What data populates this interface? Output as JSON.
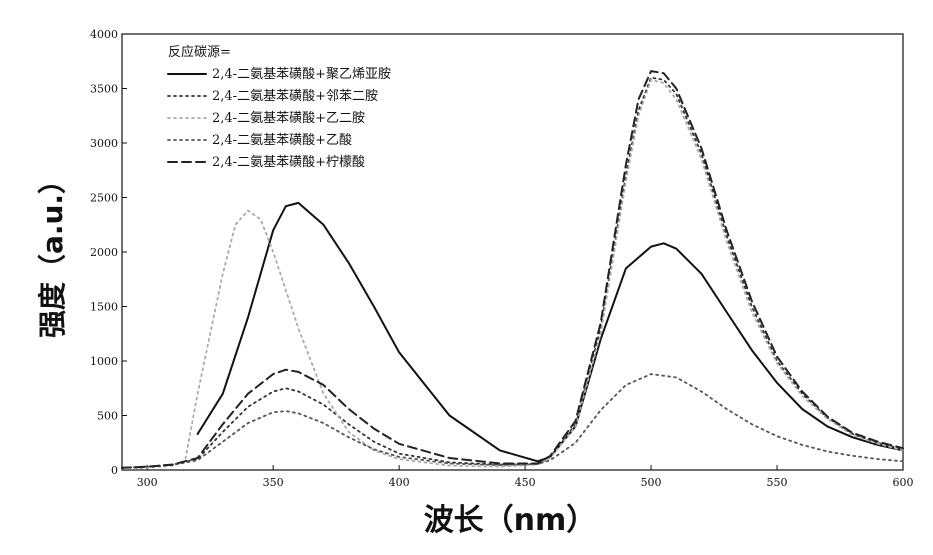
{
  "chart_data": {
    "type": "line",
    "xlabel": "波长（nm）",
    "ylabel": "强度（a.u.）",
    "xlim": [
      290,
      600
    ],
    "ylim": [
      0,
      4000
    ],
    "xticks": [
      300,
      350,
      400,
      450,
      500,
      550,
      600
    ],
    "yticks": [
      0,
      500,
      1000,
      1500,
      2000,
      2500,
      3000,
      3500,
      4000
    ],
    "grid": false,
    "legend_title": "反应碳源=",
    "legend_position": "top-left",
    "series": [
      {
        "name": "2,4-二氨基苯磺酸+聚乙烯亚胺",
        "style": "solid",
        "color": "#111111",
        "x": [
          320,
          330,
          340,
          350,
          355,
          360,
          370,
          380,
          390,
          400,
          420,
          440,
          455,
          460,
          470,
          480,
          490,
          500,
          505,
          510,
          520,
          530,
          540,
          550,
          560,
          570,
          580,
          590,
          600
        ],
        "y": [
          330,
          700,
          1400,
          2200,
          2420,
          2450,
          2250,
          1900,
          1500,
          1080,
          500,
          180,
          80,
          120,
          400,
          1200,
          1850,
          2050,
          2080,
          2030,
          1800,
          1450,
          1100,
          800,
          560,
          400,
          300,
          230,
          180
        ]
      },
      {
        "name": "2,4-二氨基苯磺酸+邻苯二胺",
        "style": "dotted",
        "color": "#333333",
        "x": [
          290,
          300,
          310,
          320,
          330,
          340,
          350,
          355,
          360,
          370,
          380,
          390,
          400,
          420,
          440,
          455,
          460,
          470,
          480,
          490,
          495,
          500,
          505,
          510,
          520,
          530,
          540,
          550,
          560,
          570,
          580,
          590,
          600
        ],
        "y": [
          20,
          30,
          50,
          100,
          350,
          580,
          720,
          750,
          720,
          600,
          420,
          260,
          150,
          70,
          50,
          60,
          120,
          420,
          1300,
          2700,
          3300,
          3600,
          3580,
          3450,
          2900,
          2150,
          1500,
          1000,
          700,
          480,
          330,
          250,
          190
        ]
      },
      {
        "name": "2,4-二氨基苯磺酸+乙二胺",
        "style": "dotted",
        "color": "#aaaaaa",
        "x": [
          295,
          300,
          310,
          315,
          320,
          330,
          335,
          340,
          345,
          350,
          360,
          370,
          380,
          390,
          400,
          420,
          440,
          455,
          460,
          470,
          480,
          490,
          495,
          500,
          505,
          510,
          520,
          530,
          540,
          550,
          560,
          570,
          580,
          590,
          600
        ],
        "y": [
          10,
          20,
          40,
          80,
          700,
          1800,
          2250,
          2380,
          2300,
          2000,
          1300,
          700,
          350,
          180,
          100,
          40,
          30,
          50,
          110,
          400,
          1250,
          2650,
          3250,
          3580,
          3550,
          3400,
          2850,
          2100,
          1450,
          980,
          680,
          470,
          320,
          240,
          180
        ]
      },
      {
        "name": "2,4-二氨基苯磺酸+乙酸",
        "style": "dotted",
        "color": "#555555",
        "x": [
          290,
          300,
          310,
          320,
          330,
          340,
          350,
          355,
          360,
          370,
          380,
          390,
          400,
          420,
          440,
          455,
          460,
          470,
          480,
          490,
          500,
          510,
          520,
          530,
          540,
          550,
          560,
          570,
          580,
          590,
          600
        ],
        "y": [
          20,
          30,
          45,
          90,
          260,
          430,
          530,
          540,
          520,
          430,
          300,
          190,
          120,
          60,
          45,
          55,
          90,
          250,
          550,
          780,
          880,
          850,
          720,
          560,
          420,
          310,
          230,
          170,
          130,
          100,
          80
        ]
      },
      {
        "name": "2,4-二氨基苯磺酸+柠檬酸",
        "style": "dashed",
        "color": "#222222",
        "x": [
          290,
          300,
          310,
          320,
          330,
          340,
          350,
          355,
          360,
          370,
          380,
          390,
          400,
          420,
          440,
          455,
          460,
          470,
          480,
          490,
          495,
          500,
          505,
          510,
          520,
          530,
          540,
          550,
          560,
          570,
          580,
          590,
          600
        ],
        "y": [
          20,
          30,
          50,
          110,
          420,
          700,
          880,
          920,
          900,
          780,
          560,
          380,
          240,
          110,
          60,
          60,
          130,
          450,
          1350,
          2800,
          3400,
          3660,
          3640,
          3500,
          2950,
          2200,
          1550,
          1040,
          720,
          490,
          340,
          260,
          200
        ]
      }
    ]
  }
}
